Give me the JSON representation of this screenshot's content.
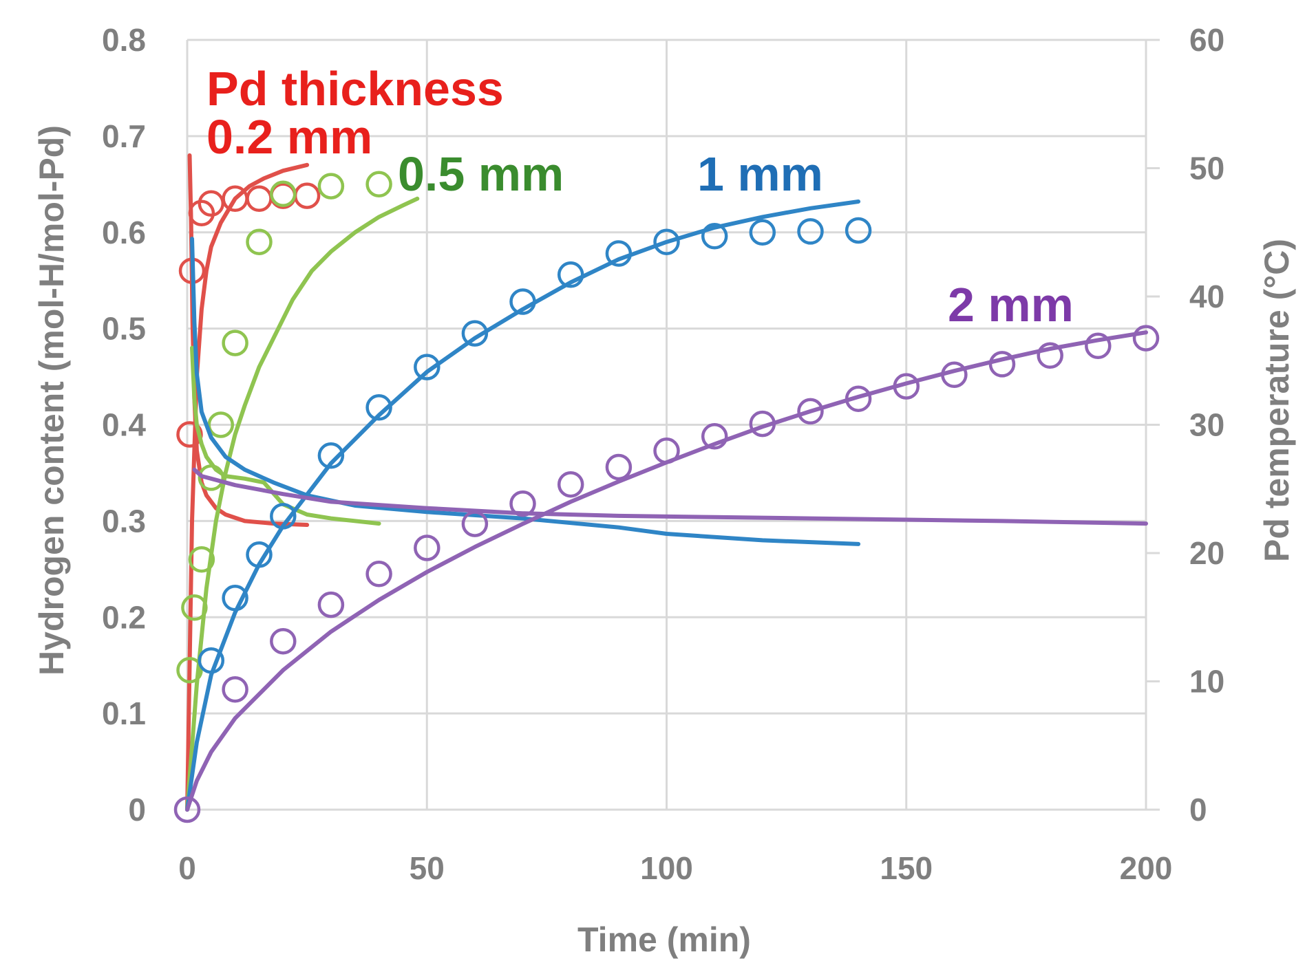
{
  "chart_data": {
    "type": "scatter",
    "title": "",
    "xlabel": "Time (min)",
    "ylabel": "Hydrogen content (mol-H/mol-Pd)",
    "y2label": "Pd temperature   (°C)",
    "xlim": [
      0,
      200
    ],
    "ylim": [
      0,
      0.8
    ],
    "y2lim": [
      0,
      60
    ],
    "grid": true,
    "x_ticks": [
      "0",
      "50",
      "100",
      "150",
      "200"
    ],
    "y_ticks": [
      "0",
      "0.1",
      "0.2",
      "0.3",
      "0.4",
      "0.5",
      "0.6",
      "0.7",
      "0.8"
    ],
    "y2_ticks": [
      "0",
      "10",
      "20",
      "30",
      "40",
      "50",
      "60"
    ],
    "annotations": {
      "heading": "Pd thickness",
      "label_02": "0.2 mm",
      "label_05": "0.5 mm",
      "label_1": "1 mm",
      "label_2": "2 mm"
    },
    "series": [
      {
        "name": "0.2 mm",
        "color": "#e0504a",
        "label_color": "#e8201c",
        "measured": {
          "x": [
            0.5,
            1,
            3,
            5,
            10,
            15,
            20,
            25
          ],
          "y": [
            0.39,
            0.56,
            0.62,
            0.63,
            0.635,
            0.635,
            0.638,
            0.638
          ]
        },
        "model": {
          "x": [
            0,
            1,
            2,
            3,
            4,
            5,
            7,
            10,
            13,
            16,
            20,
            25
          ],
          "y": [
            0,
            0.3,
            0.45,
            0.52,
            0.56,
            0.585,
            0.61,
            0.635,
            0.648,
            0.656,
            0.664,
            0.67
          ]
        },
        "temperature": {
          "x": [
            0.5,
            0.8,
            1.1,
            1.5,
            2,
            3,
            4,
            6,
            8,
            12,
            18,
            25
          ],
          "y": [
            51,
            46,
            38,
            32,
            28,
            25.5,
            24.5,
            23.5,
            23,
            22.5,
            22.3,
            22.2
          ]
        }
      },
      {
        "name": "0.5 mm",
        "color": "#8fc450",
        "label_color": "#3a8c2e",
        "measured": {
          "x": [
            0.5,
            1.5,
            3,
            5,
            7,
            10,
            15,
            20,
            30,
            40
          ],
          "y": [
            0.145,
            0.21,
            0.26,
            0.345,
            0.4,
            0.485,
            0.59,
            0.64,
            0.648,
            0.65
          ]
        },
        "model": {
          "x": [
            0,
            2,
            4,
            6,
            8,
            10,
            12,
            15,
            18,
            22,
            26,
            30,
            35,
            40,
            45,
            48
          ],
          "y": [
            0,
            0.13,
            0.23,
            0.3,
            0.35,
            0.39,
            0.42,
            0.46,
            0.49,
            0.53,
            0.56,
            0.58,
            0.6,
            0.616,
            0.628,
            0.635
          ]
        },
        "temperature": {
          "x": [
            1,
            1.5,
            2,
            3,
            4,
            6,
            8,
            12,
            16,
            20,
            25,
            30,
            40
          ],
          "y": [
            36,
            32,
            30,
            28.5,
            27.5,
            26.5,
            26,
            25.8,
            25.5,
            23.8,
            23,
            22.7,
            22.3
          ]
        }
      },
      {
        "name": "1 mm",
        "color": "#2f85c6",
        "label_color": "#1f6eb5",
        "measured": {
          "x": [
            5,
            10,
            15,
            20,
            30,
            40,
            50,
            60,
            70,
            80,
            90,
            100,
            110,
            120,
            130,
            140
          ],
          "y": [
            0.155,
            0.22,
            0.265,
            0.305,
            0.368,
            0.418,
            0.46,
            0.495,
            0.528,
            0.556,
            0.578,
            0.59,
            0.596,
            0.6,
            0.601,
            0.602
          ]
        },
        "model": {
          "x": [
            0,
            2,
            5,
            10,
            15,
            20,
            30,
            40,
            50,
            60,
            70,
            80,
            90,
            100,
            110,
            120,
            130,
            140
          ],
          "y": [
            0,
            0.07,
            0.14,
            0.205,
            0.255,
            0.295,
            0.36,
            0.41,
            0.455,
            0.49,
            0.52,
            0.548,
            0.572,
            0.59,
            0.605,
            0.616,
            0.625,
            0.632
          ]
        },
        "temperature": {
          "x": [
            1,
            1.5,
            2,
            3,
            5,
            8,
            12,
            18,
            25,
            35,
            50,
            70,
            90,
            100,
            120,
            140
          ],
          "y": [
            44.5,
            38,
            34,
            31,
            29,
            27.5,
            26.5,
            25.5,
            24.5,
            23.7,
            23.2,
            22.7,
            22,
            21.5,
            21,
            20.7
          ]
        }
      },
      {
        "name": "2 mm",
        "color": "#8f63b4",
        "label_color": "#7d3aa8",
        "measured": {
          "x": [
            0,
            10,
            20,
            30,
            40,
            50,
            60,
            70,
            80,
            90,
            100,
            110,
            120,
            130,
            140,
            150,
            160,
            170,
            180,
            190,
            200
          ],
          "y": [
            0,
            0.125,
            0.175,
            0.213,
            0.245,
            0.272,
            0.297,
            0.318,
            0.338,
            0.356,
            0.373,
            0.388,
            0.401,
            0.414,
            0.427,
            0.44,
            0.452,
            0.463,
            0.472,
            0.482,
            0.49
          ]
        },
        "model": {
          "x": [
            0,
            2,
            5,
            10,
            20,
            30,
            40,
            50,
            60,
            70,
            80,
            90,
            100,
            110,
            120,
            130,
            140,
            150,
            160,
            170,
            180,
            190,
            200
          ],
          "y": [
            0,
            0.03,
            0.06,
            0.095,
            0.145,
            0.185,
            0.218,
            0.247,
            0.273,
            0.297,
            0.32,
            0.341,
            0.361,
            0.38,
            0.398,
            0.414,
            0.429,
            0.443,
            0.456,
            0.468,
            0.479,
            0.488,
            0.496
          ]
        },
        "temperature": {
          "x": [
            1.5,
            3,
            5,
            10,
            20,
            30,
            50,
            70,
            90,
            110,
            130,
            150,
            170,
            200
          ],
          "y": [
            26.5,
            26,
            25.8,
            25.3,
            24.6,
            24,
            23.5,
            23.1,
            22.9,
            22.8,
            22.7,
            22.6,
            22.5,
            22.3
          ]
        }
      }
    ]
  }
}
